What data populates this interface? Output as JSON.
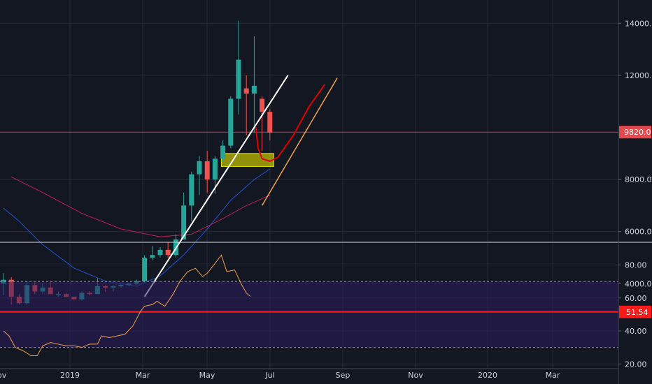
{
  "chart_data": [
    {
      "type": "candlestick",
      "panel": "price",
      "y_ticks": [
        4000,
        6000,
        8000,
        12000,
        14000
      ],
      "y_tick_labels": [
        "4000.0",
        "6000.0",
        "8000.0",
        "12000.0",
        "14000.0"
      ],
      "ylim": [
        2050,
        15400
      ],
      "current_price": 9820,
      "current_price_label": "9820.0",
      "x_tick_labels": [
        "2019",
        "Mar",
        "May",
        "Jul",
        "Sep",
        "Nov",
        "2020",
        "Mar"
      ],
      "candles": [
        {
          "date": "2018-11-26",
          "open": 4000,
          "high": 4400,
          "low": 3550,
          "close": 4150
        },
        {
          "date": "2018-12-03",
          "open": 4150,
          "high": 4250,
          "low": 3200,
          "close": 3500
        },
        {
          "date": "2018-12-10",
          "open": 3500,
          "high": 3600,
          "low": 3200,
          "close": 3250
        },
        {
          "date": "2018-12-17",
          "open": 3250,
          "high": 4100,
          "low": 3200,
          "close": 3950
        },
        {
          "date": "2018-12-24",
          "open": 3950,
          "high": 4050,
          "low": 3600,
          "close": 3700
        },
        {
          "date": "2018-12-31",
          "open": 3700,
          "high": 4000,
          "low": 3600,
          "close": 3850
        },
        {
          "date": "2019-01-07",
          "open": 3850,
          "high": 4100,
          "low": 3600,
          "close": 3600
        },
        {
          "date": "2019-01-14",
          "open": 3600,
          "high": 3700,
          "low": 3500,
          "close": 3600
        },
        {
          "date": "2019-01-21",
          "open": 3600,
          "high": 3650,
          "low": 3500,
          "close": 3500
        },
        {
          "date": "2019-01-28",
          "open": 3500,
          "high": 3500,
          "low": 3400,
          "close": 3400
        },
        {
          "date": "2019-02-04",
          "open": 3400,
          "high": 3700,
          "low": 3350,
          "close": 3650
        },
        {
          "date": "2019-02-11",
          "open": 3650,
          "high": 3700,
          "low": 3550,
          "close": 3600
        },
        {
          "date": "2019-02-18",
          "open": 3600,
          "high": 4200,
          "low": 3600,
          "close": 3900
        },
        {
          "date": "2019-02-25",
          "open": 3900,
          "high": 3950,
          "low": 3700,
          "close": 3850
        },
        {
          "date": "2019-03-04",
          "open": 3850,
          "high": 3950,
          "low": 3700,
          "close": 3900
        },
        {
          "date": "2019-03-11",
          "open": 3900,
          "high": 4000,
          "low": 3850,
          "close": 3950
        },
        {
          "date": "2019-03-18",
          "open": 3950,
          "high": 4050,
          "low": 3900,
          "close": 4000
        },
        {
          "date": "2019-03-25",
          "open": 4000,
          "high": 4150,
          "low": 3950,
          "close": 4100
        },
        {
          "date": "2019-04-01",
          "open": 4100,
          "high": 5100,
          "low": 4050,
          "close": 5000
        },
        {
          "date": "2019-04-08",
          "open": 5000,
          "high": 5450,
          "low": 4900,
          "close": 5100
        },
        {
          "date": "2019-04-15",
          "open": 5100,
          "high": 5400,
          "low": 5000,
          "close": 5300
        },
        {
          "date": "2019-04-22",
          "open": 5300,
          "high": 5600,
          "low": 5000,
          "close": 5100
        },
        {
          "date": "2019-04-29",
          "open": 5100,
          "high": 5900,
          "low": 5000,
          "close": 5700
        },
        {
          "date": "2019-05-06",
          "open": 5700,
          "high": 7500,
          "low": 5700,
          "close": 7000
        },
        {
          "date": "2019-05-13",
          "open": 7000,
          "high": 8300,
          "low": 6400,
          "close": 8200
        },
        {
          "date": "2019-05-20",
          "open": 8200,
          "high": 8900,
          "low": 7400,
          "close": 8700
        },
        {
          "date": "2019-05-27",
          "open": 8700,
          "high": 9100,
          "low": 7500,
          "close": 8000
        },
        {
          "date": "2019-06-03",
          "open": 8000,
          "high": 8900,
          "low": 7450,
          "close": 8800
        },
        {
          "date": "2019-06-10",
          "open": 8800,
          "high": 9500,
          "low": 8700,
          "close": 9300
        },
        {
          "date": "2019-06-17",
          "open": 9300,
          "high": 11200,
          "low": 9200,
          "close": 11100
        },
        {
          "date": "2019-06-24",
          "open": 11100,
          "high": 14100,
          "low": 10500,
          "close": 12600
        },
        {
          "date": "2019-07-01",
          "open": 11500,
          "high": 12000,
          "low": 9700,
          "close": 11300
        },
        {
          "date": "2019-07-08",
          "open": 11300,
          "high": 13500,
          "low": 9800,
          "close": 11600
        },
        {
          "date": "2019-07-15",
          "open": 11100,
          "high": 11200,
          "low": 9100,
          "close": 10600
        },
        {
          "date": "2019-07-22",
          "open": 10600,
          "high": 10700,
          "low": 9500,
          "close": 9800
        }
      ],
      "moving_averages": [
        {
          "color": "#2962ff",
          "points": [
            [
              0,
              6900
            ],
            [
              2,
              6400
            ],
            [
              5,
              5500
            ],
            [
              9,
              4600
            ],
            [
              13,
              4100
            ],
            [
              17,
              3900
            ],
            [
              20,
              4300
            ],
            [
              23,
              5100
            ],
            [
              26,
              6100
            ],
            [
              29,
              7200
            ],
            [
              32,
              8000
            ],
            [
              34,
              8400
            ]
          ]
        },
        {
          "color": "#e91e63",
          "points": [
            [
              1,
              8100
            ],
            [
              5,
              7500
            ],
            [
              10,
              6700
            ],
            [
              15,
              6100
            ],
            [
              20,
              5800
            ],
            [
              24,
              5900
            ],
            [
              28,
              6500
            ],
            [
              31,
              7000
            ],
            [
              34,
              7400
            ]
          ]
        }
      ],
      "support_zone": {
        "from_index": 27.8,
        "to_index": 34.5,
        "low": 8500,
        "high": 9000,
        "color": "#c8c800"
      },
      "horizontal_line": {
        "value": 9820,
        "color": "#e5484d"
      },
      "trend_line_white": {
        "from": [
          18,
          3500
        ],
        "to": [
          36.3,
          12000
        ],
        "color": "#ffffff"
      },
      "trend_line_orange": {
        "from": [
          33,
          7000
        ],
        "to": [
          42.6,
          11900
        ],
        "color": "#f0a14a"
      },
      "projection_curve": {
        "color": "#e00000",
        "points": [
          [
            32.2,
            10000
          ],
          [
            32.5,
            9200
          ],
          [
            33,
            8800
          ],
          [
            34,
            8700
          ],
          [
            35,
            8850
          ],
          [
            37,
            9700
          ],
          [
            39,
            10800
          ],
          [
            41,
            11650
          ]
        ]
      }
    },
    {
      "type": "line",
      "panel": "rsi",
      "y_ticks": [
        20,
        40,
        60,
        80
      ],
      "y_tick_labels": [
        "20.00",
        "40.00",
        "60.00",
        "80.00"
      ],
      "ylim": [
        19,
        92
      ],
      "band": {
        "low": 30,
        "high": 70
      },
      "current_value": 51.54,
      "current_value_label": "51.54",
      "color": "#f0a14a",
      "values": [
        [
          0,
          40
        ],
        [
          0.7,
          37
        ],
        [
          1.5,
          30
        ],
        [
          2.5,
          28
        ],
        [
          3.5,
          25
        ],
        [
          4.3,
          25
        ],
        [
          5,
          31
        ],
        [
          6,
          33
        ],
        [
          7,
          32
        ],
        [
          8,
          31
        ],
        [
          9,
          31
        ],
        [
          10,
          30
        ],
        [
          11,
          32
        ],
        [
          12,
          32
        ],
        [
          12.5,
          37
        ],
        [
          13.5,
          36
        ],
        [
          14.5,
          37
        ],
        [
          15.5,
          38
        ],
        [
          16.5,
          43
        ],
        [
          17.5,
          52
        ],
        [
          18,
          55
        ],
        [
          19,
          56
        ],
        [
          19.6,
          58
        ],
        [
          20.6,
          55
        ],
        [
          21.6,
          62
        ],
        [
          22.5,
          70
        ],
        [
          23.5,
          76
        ],
        [
          24.5,
          78
        ],
        [
          25.4,
          73
        ],
        [
          26,
          75
        ],
        [
          27,
          81
        ],
        [
          27.8,
          86
        ],
        [
          28.5,
          76
        ],
        [
          29.5,
          77
        ],
        [
          30.4,
          68
        ],
        [
          31,
          63
        ],
        [
          31.5,
          61
        ]
      ]
    }
  ]
}
